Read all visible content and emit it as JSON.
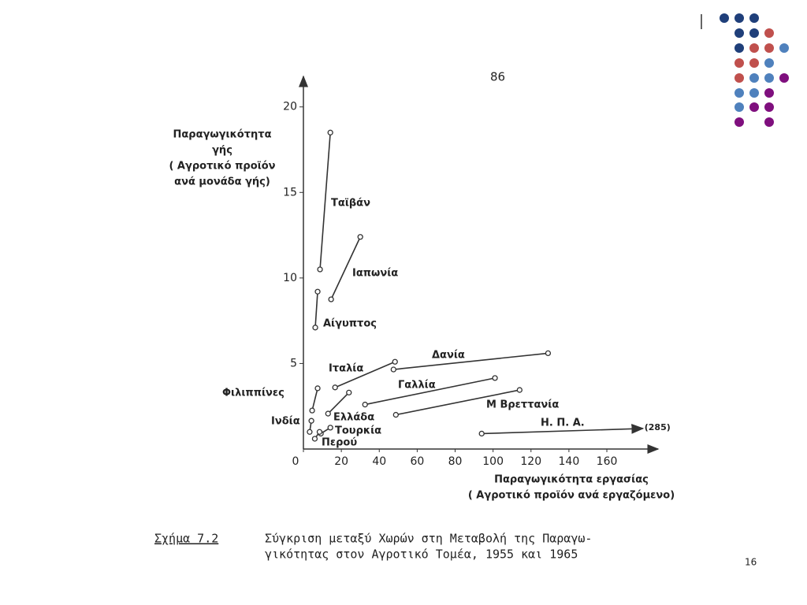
{
  "page_number": "86",
  "slide_number": "16",
  "chart_data": {
    "type": "line",
    "y_label": [
      "Παραγωγικότητα",
      "γής",
      "( Αγροτικό προϊόν",
      "ανά μονάδα γής)"
    ],
    "x_label": [
      "Παραγωγικότητα εργασίας",
      "( Αγροτικό προϊόν ανά εργαζόμενο)"
    ],
    "xlim": [
      0,
      187
    ],
    "ylim": [
      0,
      21
    ],
    "xticks": [
      0,
      20,
      40,
      60,
      80,
      100,
      120,
      140,
      160
    ],
    "yticks": [
      5,
      10,
      15,
      20
    ],
    "color": "#333333",
    "series": [
      {
        "name": "Ταϊβάν",
        "x": [
          8.75,
          14.2
        ],
        "values": [
          10.5,
          18.5
        ]
      },
      {
        "name": "Ιαπωνία",
        "x": [
          14.6,
          30
        ],
        "values": [
          8.75,
          12.4
        ]
      },
      {
        "name": "Αίγυπτος",
        "x": [
          6.25,
          7.5
        ],
        "values": [
          7.1,
          9.2
        ]
      },
      {
        "name": "Ιταλία",
        "x": [
          16.7,
          48.3
        ],
        "values": [
          3.6,
          5.1
        ]
      },
      {
        "name": "Δανία",
        "x": [
          47.5,
          129
        ],
        "values": [
          4.65,
          5.6
        ]
      },
      {
        "name": "Γαλλία",
        "x": [
          32.5,
          101
        ],
        "values": [
          2.6,
          4.15
        ]
      },
      {
        "name": "Μ Βρεττανία",
        "x": [
          48.75,
          114
        ],
        "values": [
          2.0,
          3.45
        ]
      },
      {
        "name": "Η. Π. Α.",
        "x": [
          94,
          179
        ],
        "values": [
          0.9,
          1.2
        ]
      },
      {
        "name": "Φιλιππίνες",
        "x": [
          4.6,
          7.5
        ],
        "values": [
          2.25,
          3.55
        ]
      },
      {
        "name": "Ελλάδα",
        "x": [
          13,
          24
        ],
        "values": [
          2.07,
          3.3
        ]
      },
      {
        "name": "Ινδία",
        "x": [
          3.3,
          4.2
        ],
        "values": [
          1.0,
          1.65
        ]
      },
      {
        "name": "Τουρκία",
        "x": [
          9.2,
          14.2
        ],
        "values": [
          0.9,
          1.25
        ]
      },
      {
        "name": "Περού",
        "x": [
          6,
          8.5
        ],
        "values": [
          0.6,
          1.0
        ]
      }
    ],
    "annotations": [
      "(285)"
    ],
    "caption_label": "Σχήμα 7.2",
    "caption": [
      "Σύγκριση μεταξύ Χωρών στη Μεταβολή της Παραγω-",
      "γικότητας στον Αγροτικό Τομέα, 1955 και 1965"
    ]
  }
}
